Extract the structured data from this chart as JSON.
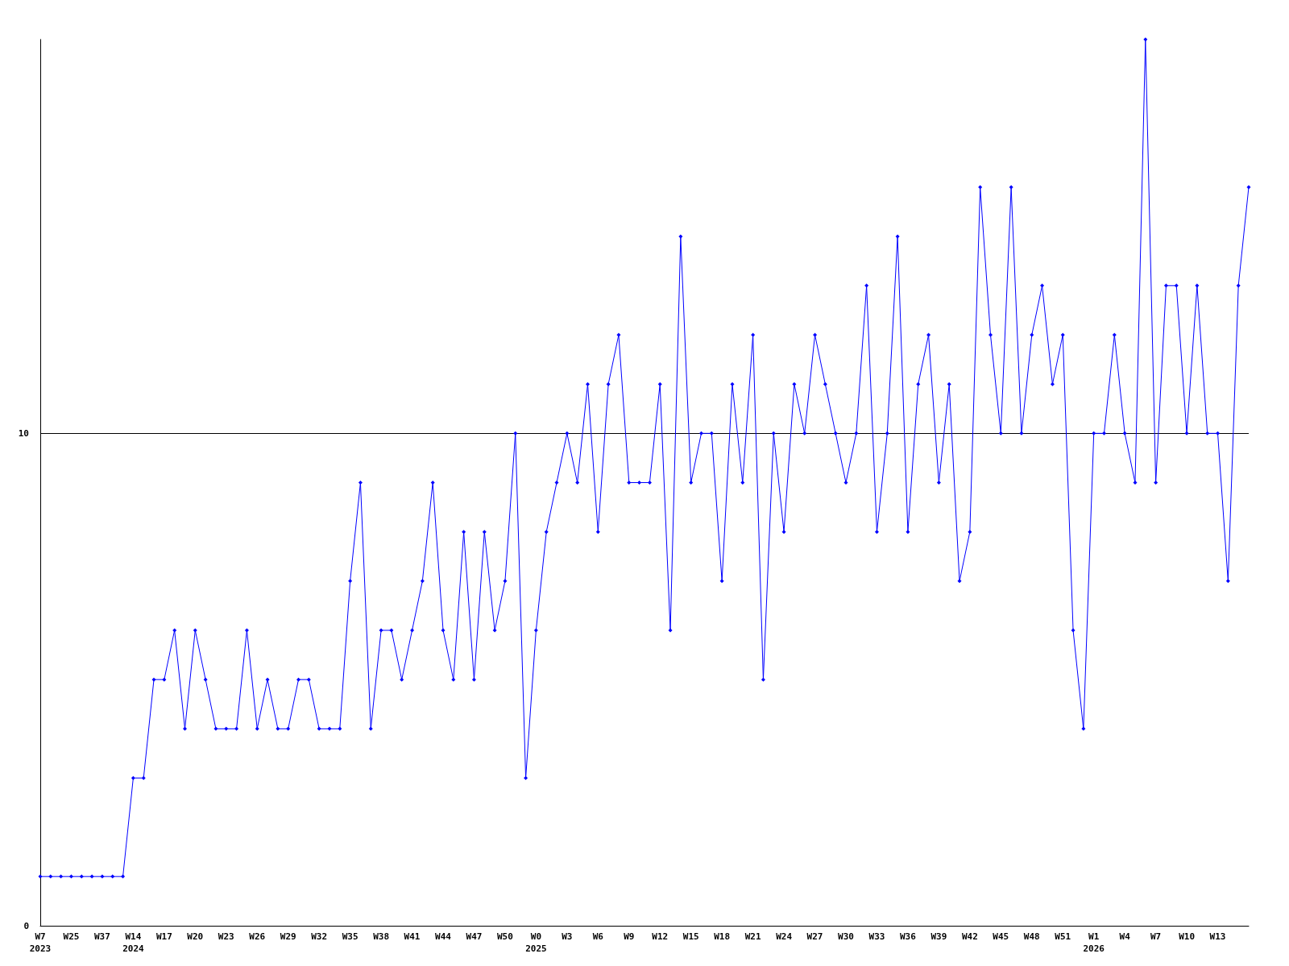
{
  "chart_data": {
    "type": "line",
    "categories": [
      "W7\n2023",
      null,
      null,
      "W25",
      null,
      null,
      "W37",
      null,
      null,
      "W14\n2024",
      null,
      null,
      "W17",
      null,
      null,
      "W20",
      null,
      null,
      "W23",
      null,
      null,
      "W26",
      null,
      null,
      "W29",
      null,
      null,
      "W32",
      null,
      null,
      "W35",
      null,
      null,
      "W38",
      null,
      null,
      "W41",
      null,
      null,
      "W44",
      null,
      null,
      "W47",
      null,
      null,
      "W50",
      null,
      null,
      "W0\n2025",
      null,
      null,
      "W3",
      null,
      null,
      "W6",
      null,
      null,
      "W9",
      null,
      null,
      "W12",
      null,
      null,
      "W15",
      null,
      null,
      "W18",
      null,
      null,
      "W21",
      null,
      null,
      "W24",
      null,
      null,
      "W27",
      null,
      null,
      "W30",
      null,
      null,
      "W33",
      null,
      null,
      "W36",
      null,
      null,
      "W39",
      null,
      null,
      "W42",
      null,
      null,
      "W45",
      null,
      null,
      "W48",
      null,
      null,
      "W51",
      null,
      null,
      "W1\n2026",
      null,
      null,
      "W4",
      null,
      null,
      "W7",
      null,
      null,
      "W10",
      null,
      null,
      "W13",
      null,
      null,
      null
    ],
    "series": [
      {
        "color": "#0000ff",
        "values": [
          1,
          1,
          1,
          1,
          1,
          1,
          1,
          1,
          1,
          3,
          3,
          5,
          5,
          6,
          4,
          6,
          5,
          4,
          4,
          4,
          6,
          4,
          5,
          4,
          4,
          5,
          5,
          4,
          4,
          4,
          7,
          9,
          4,
          6,
          6,
          5,
          6,
          7,
          9,
          6,
          5,
          8,
          5,
          8,
          6,
          7,
          10,
          3,
          6,
          8,
          9,
          10,
          9,
          11,
          8,
          11,
          12,
          9,
          9,
          9,
          11,
          6,
          14,
          9,
          10,
          10,
          7,
          11,
          9,
          12,
          5,
          10,
          8,
          11,
          10,
          12,
          11,
          10,
          9,
          10,
          13,
          8,
          10,
          14,
          8,
          11,
          12,
          9,
          11,
          7,
          8,
          15,
          12,
          10,
          15,
          10,
          12,
          13,
          11,
          12,
          6,
          4,
          10,
          10,
          12,
          10,
          9,
          18,
          9,
          13,
          13,
          10,
          13,
          10,
          10,
          7,
          13,
          15
        ]
      }
    ],
    "ylim": [
      0,
      18
    ],
    "yticks": [
      0,
      10
    ],
    "grid": "y",
    "marker": "diamond",
    "line_style": "solid"
  }
}
